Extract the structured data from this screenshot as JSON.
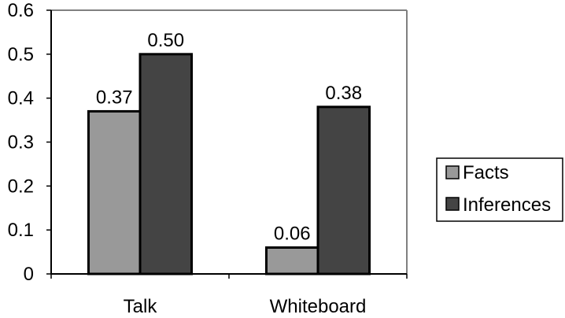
{
  "chart_data": {
    "type": "bar",
    "categories": [
      "Talk",
      "Whiteboard"
    ],
    "series": [
      {
        "name": "Facts",
        "values": [
          0.37,
          0.06
        ],
        "labels": [
          "0.37",
          "0.06"
        ],
        "color": "#999999"
      },
      {
        "name": "Inferences",
        "values": [
          0.5,
          0.38
        ],
        "labels": [
          "0.50",
          "0.38"
        ],
        "color": "#444444"
      }
    ],
    "yticks": [
      "0",
      "0.1",
      "0.2",
      "0.3",
      "0.4",
      "0.5",
      "0.6"
    ],
    "ylim": [
      0,
      0.6
    ],
    "grid": false,
    "legend": "right"
  }
}
